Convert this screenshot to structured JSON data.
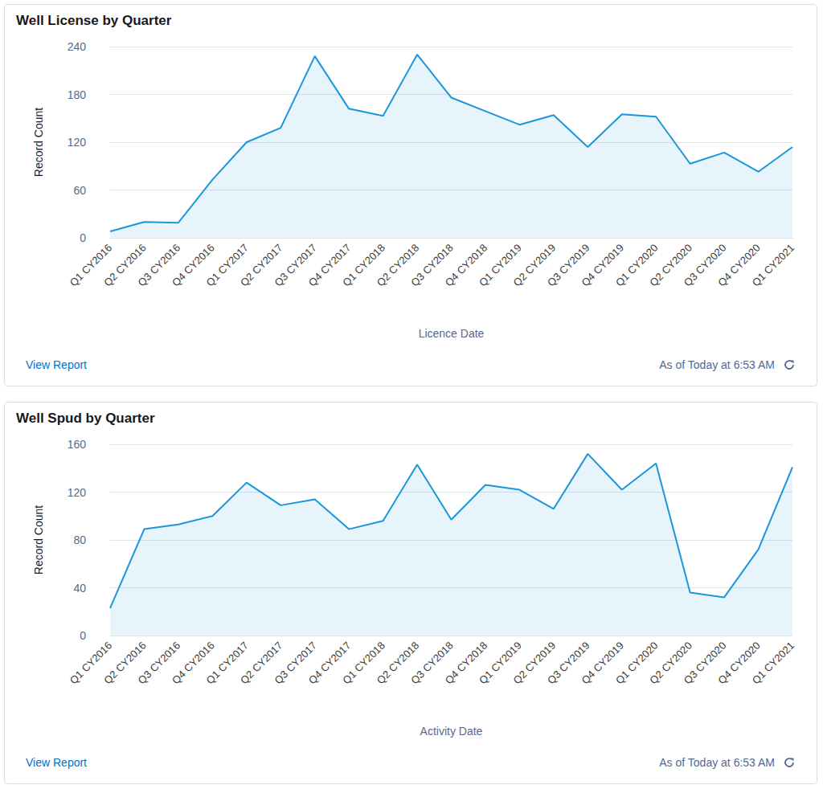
{
  "chart_data": [
    {
      "type": "line",
      "title": "Well License by Quarter",
      "x_label": "Licence Date",
      "y_label": "Record Count",
      "categories": [
        "Q1 CY2016",
        "Q2 CY2016",
        "Q3 CY2016",
        "Q4 CY2016",
        "Q1 CY2017",
        "Q2 CY2017",
        "Q3 CY2017",
        "Q4 CY2017",
        "Q1 CY2018",
        "Q2 CY2018",
        "Q3 CY2018",
        "Q4 CY2018",
        "Q1 CY2019",
        "Q2 CY2019",
        "Q3 CY2019",
        "Q4 CY2019",
        "Q1 CY2020",
        "Q2 CY2020",
        "Q3 CY2020",
        "Q4 CY2020",
        "Q1 CY2021"
      ],
      "values": [
        8,
        20,
        19,
        73,
        120,
        138,
        228,
        162,
        153,
        230,
        176,
        159,
        142,
        154,
        114,
        155,
        152,
        93,
        107,
        83,
        114
      ],
      "color": "#1b96d9",
      "ylim": [
        0,
        240
      ],
      "yticks": [
        0,
        60,
        120,
        180,
        240
      ],
      "grid": true,
      "footer": {
        "link": "View Report",
        "status": "As of Today at 6:53 AM"
      }
    },
    {
      "type": "line",
      "title": "Well Spud by Quarter",
      "x_label": "Activity Date",
      "y_label": "Record Count",
      "categories": [
        "Q1 CY2016",
        "Q2 CY2016",
        "Q3 CY2016",
        "Q4 CY2016",
        "Q1 CY2017",
        "Q2 CY2017",
        "Q3 CY2017",
        "Q4 CY2017",
        "Q1 CY2018",
        "Q2 CY2018",
        "Q3 CY2018",
        "Q4 CY2018",
        "Q1 CY2019",
        "Q2 CY2019",
        "Q3 CY2019",
        "Q4 CY2019",
        "Q1 CY2020",
        "Q2 CY2020",
        "Q3 CY2020",
        "Q4 CY2020",
        "Q1 CY2021"
      ],
      "values": [
        23,
        89,
        93,
        100,
        128,
        109,
        114,
        89,
        96,
        143,
        97,
        126,
        122,
        106,
        152,
        122,
        144,
        36,
        32,
        72,
        141
      ],
      "color": "#1b96d9",
      "ylim": [
        0,
        160
      ],
      "yticks": [
        0,
        40,
        80,
        120,
        160
      ],
      "grid": true,
      "footer": {
        "link": "View Report",
        "status": "As of Today at 6:53 AM"
      }
    }
  ]
}
